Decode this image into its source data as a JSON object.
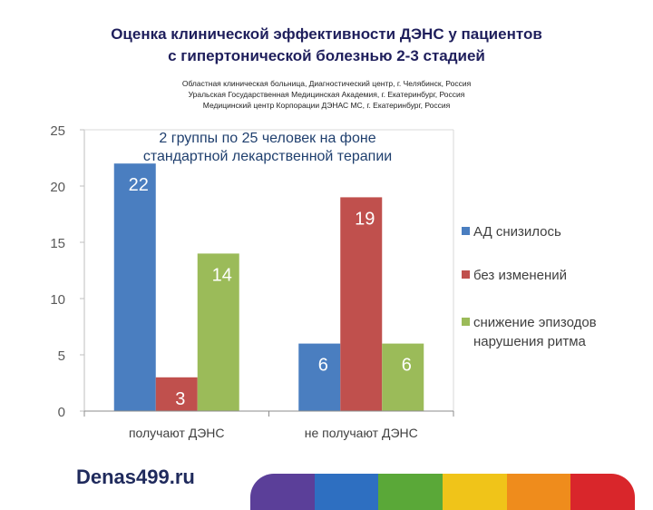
{
  "header": {
    "title_line1": "Оценка клинической эффективности ДЭНС у пациентов",
    "title_line2": "с гипертонической болезнью 2-3 стадией",
    "affil_line1": "Областная клиническая больница, Диагностический центр, г. Челябинск, Россия",
    "affil_line2": "Уральская Государственная Медицинская Академия, г. Екатеринбург, Россия",
    "affil_line3": "Медицинский центр Корпорации ДЭНАС МС, г. Екатеринбург, Россия"
  },
  "chart_data": {
    "type": "bar",
    "title": "2 группы по 25 человек на фоне стандартной лекарственной терапии",
    "title_lines": [
      "2 группы по 25 человек на фоне",
      "стандартной лекарственной терапии"
    ],
    "categories": [
      "получают ДЭНС",
      "не получают ДЭНС"
    ],
    "series": [
      {
        "name": "АД снизилось",
        "values": [
          22,
          6
        ],
        "color": "#4a7ec0"
      },
      {
        "name": "без изменений",
        "values": [
          3,
          19
        ],
        "color": "#c0504d"
      },
      {
        "name": "снижение эпизодов нарушения ритма",
        "legend_lines": [
          "снижение эпизодов",
          "нарушения ритма"
        ],
        "values": [
          14,
          6
        ],
        "color": "#9bbb59"
      }
    ],
    "ylim": [
      0,
      25
    ],
    "yticks": [
      0,
      5,
      10,
      15,
      20,
      25
    ],
    "xlabel": "",
    "ylabel": "",
    "legend_position": "right"
  },
  "footer": {
    "site": "Denas499.ru",
    "stripe_colors": [
      "#5b3f99",
      "#2e6fc1",
      "#5aa838",
      "#f0c419",
      "#ef8c1c",
      "#d9262b"
    ]
  }
}
